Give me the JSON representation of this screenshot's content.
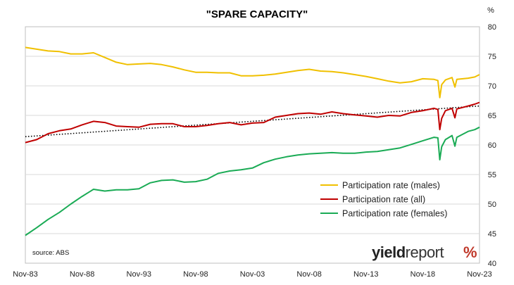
{
  "chart_data": {
    "type": "line",
    "title": "\"SPARE CAPACITY\"",
    "y_unit": "%",
    "ylim": [
      40,
      80
    ],
    "y_ticks": [
      40,
      45,
      50,
      55,
      60,
      65,
      70,
      75,
      80
    ],
    "x_tick_labels": [
      "Nov-83",
      "Nov-88",
      "Nov-93",
      "Nov-98",
      "Nov-03",
      "Nov-08",
      "Nov-13",
      "Nov-18",
      "Nov-23"
    ],
    "x_range": [
      "1983-11",
      "2023-11"
    ],
    "grid": "horizontal",
    "legend_position": "bottom-right",
    "source": "source: ABS",
    "brand": {
      "bold": "yield",
      "light": "report",
      "symbol": "%"
    },
    "colors": {
      "males": "#f0c000",
      "all": "#c00000",
      "females": "#1aab55",
      "trend": "#000000",
      "brand_red": "#c0392b",
      "brand_green": "#2e8b57"
    },
    "series": [
      {
        "key": "males",
        "name": "Participation rate (males)",
        "color": "#f0c000",
        "points": [
          [
            "1983-11",
            76.5
          ],
          [
            "1984-11",
            76.2
          ],
          [
            "1985-11",
            75.9
          ],
          [
            "1986-11",
            75.8
          ],
          [
            "1987-11",
            75.4
          ],
          [
            "1988-11",
            75.4
          ],
          [
            "1989-11",
            75.6
          ],
          [
            "1990-11",
            74.8
          ],
          [
            "1991-11",
            74.0
          ],
          [
            "1992-11",
            73.6
          ],
          [
            "1993-11",
            73.7
          ],
          [
            "1994-11",
            73.8
          ],
          [
            "1995-11",
            73.6
          ],
          [
            "1996-11",
            73.2
          ],
          [
            "1997-11",
            72.7
          ],
          [
            "1998-11",
            72.3
          ],
          [
            "1999-11",
            72.3
          ],
          [
            "2000-11",
            72.2
          ],
          [
            "2001-11",
            72.2
          ],
          [
            "2002-11",
            71.7
          ],
          [
            "2003-11",
            71.7
          ],
          [
            "2004-11",
            71.8
          ],
          [
            "2005-11",
            72.0
          ],
          [
            "2006-11",
            72.3
          ],
          [
            "2007-11",
            72.6
          ],
          [
            "2008-11",
            72.8
          ],
          [
            "2009-11",
            72.5
          ],
          [
            "2010-11",
            72.4
          ],
          [
            "2011-11",
            72.2
          ],
          [
            "2012-11",
            71.9
          ],
          [
            "2013-11",
            71.6
          ],
          [
            "2014-11",
            71.2
          ],
          [
            "2015-11",
            70.8
          ],
          [
            "2016-11",
            70.5
          ],
          [
            "2017-11",
            70.7
          ],
          [
            "2018-11",
            71.2
          ],
          [
            "2019-11",
            71.1
          ],
          [
            "2020-03",
            70.9
          ],
          [
            "2020-05",
            68.0
          ],
          [
            "2020-07",
            70.2
          ],
          [
            "2020-11",
            71.0
          ],
          [
            "2021-06",
            71.4
          ],
          [
            "2021-09",
            69.8
          ],
          [
            "2021-11",
            71.1
          ],
          [
            "2022-11",
            71.3
          ],
          [
            "2023-06",
            71.5
          ],
          [
            "2023-11",
            71.9
          ]
        ]
      },
      {
        "key": "all",
        "name": "Participation rate (all)",
        "color": "#c00000",
        "points": [
          [
            "1983-11",
            60.4
          ],
          [
            "1984-11",
            60.9
          ],
          [
            "1985-11",
            61.9
          ],
          [
            "1986-11",
            62.4
          ],
          [
            "1987-11",
            62.7
          ],
          [
            "1988-11",
            63.4
          ],
          [
            "1989-11",
            64.0
          ],
          [
            "1990-11",
            63.8
          ],
          [
            "1991-11",
            63.2
          ],
          [
            "1992-11",
            63.1
          ],
          [
            "1993-11",
            63.0
          ],
          [
            "1994-11",
            63.5
          ],
          [
            "1995-11",
            63.6
          ],
          [
            "1996-11",
            63.6
          ],
          [
            "1997-11",
            63.1
          ],
          [
            "1998-11",
            63.1
          ],
          [
            "1999-11",
            63.3
          ],
          [
            "2000-11",
            63.6
          ],
          [
            "2001-11",
            63.8
          ],
          [
            "2002-11",
            63.4
          ],
          [
            "2003-11",
            63.7
          ],
          [
            "2004-11",
            63.8
          ],
          [
            "2005-11",
            64.7
          ],
          [
            "2006-11",
            65.0
          ],
          [
            "2007-11",
            65.3
          ],
          [
            "2008-11",
            65.4
          ],
          [
            "2009-11",
            65.2
          ],
          [
            "2010-11",
            65.6
          ],
          [
            "2011-11",
            65.3
          ],
          [
            "2012-11",
            65.1
          ],
          [
            "2013-11",
            64.9
          ],
          [
            "2014-11",
            64.7
          ],
          [
            "2015-11",
            65.0
          ],
          [
            "2016-11",
            64.9
          ],
          [
            "2017-11",
            65.5
          ],
          [
            "2018-11",
            65.8
          ],
          [
            "2019-11",
            66.2
          ],
          [
            "2020-03",
            66.0
          ],
          [
            "2020-05",
            62.6
          ],
          [
            "2020-07",
            64.5
          ],
          [
            "2020-11",
            65.8
          ],
          [
            "2021-06",
            66.2
          ],
          [
            "2021-09",
            64.6
          ],
          [
            "2021-11",
            66.1
          ],
          [
            "2022-11",
            66.6
          ],
          [
            "2023-06",
            66.9
          ],
          [
            "2023-11",
            67.2
          ]
        ]
      },
      {
        "key": "females",
        "name": "Participation rate (females)",
        "color": "#1aab55",
        "points": [
          [
            "1983-11",
            44.7
          ],
          [
            "1984-11",
            46.0
          ],
          [
            "1985-11",
            47.4
          ],
          [
            "1986-11",
            48.6
          ],
          [
            "1987-11",
            50.0
          ],
          [
            "1988-11",
            51.3
          ],
          [
            "1989-11",
            52.5
          ],
          [
            "1990-11",
            52.2
          ],
          [
            "1991-11",
            52.4
          ],
          [
            "1992-11",
            52.4
          ],
          [
            "1993-11",
            52.6
          ],
          [
            "1994-11",
            53.6
          ],
          [
            "1995-11",
            54.0
          ],
          [
            "1996-11",
            54.1
          ],
          [
            "1997-11",
            53.7
          ],
          [
            "1998-11",
            53.8
          ],
          [
            "1999-11",
            54.2
          ],
          [
            "2000-11",
            55.2
          ],
          [
            "2001-11",
            55.6
          ],
          [
            "2002-11",
            55.8
          ],
          [
            "2003-11",
            56.1
          ],
          [
            "2004-11",
            57.0
          ],
          [
            "2005-11",
            57.6
          ],
          [
            "2006-11",
            58.0
          ],
          [
            "2007-11",
            58.3
          ],
          [
            "2008-11",
            58.5
          ],
          [
            "2009-11",
            58.6
          ],
          [
            "2010-11",
            58.7
          ],
          [
            "2011-11",
            58.6
          ],
          [
            "2012-11",
            58.6
          ],
          [
            "2013-11",
            58.8
          ],
          [
            "2014-11",
            58.9
          ],
          [
            "2015-11",
            59.2
          ],
          [
            "2016-11",
            59.5
          ],
          [
            "2017-11",
            60.1
          ],
          [
            "2018-11",
            60.7
          ],
          [
            "2019-11",
            61.3
          ],
          [
            "2020-03",
            61.2
          ],
          [
            "2020-05",
            57.5
          ],
          [
            "2020-07",
            59.7
          ],
          [
            "2020-11",
            60.9
          ],
          [
            "2021-06",
            61.6
          ],
          [
            "2021-09",
            59.8
          ],
          [
            "2021-11",
            61.3
          ],
          [
            "2022-11",
            62.3
          ],
          [
            "2023-06",
            62.6
          ],
          [
            "2023-11",
            63.0
          ]
        ]
      },
      {
        "key": "trend",
        "name": "",
        "color": "#000000",
        "style": "dotted",
        "points": [
          [
            "1983-11",
            61.4
          ],
          [
            "2023-11",
            66.6
          ]
        ]
      }
    ]
  }
}
